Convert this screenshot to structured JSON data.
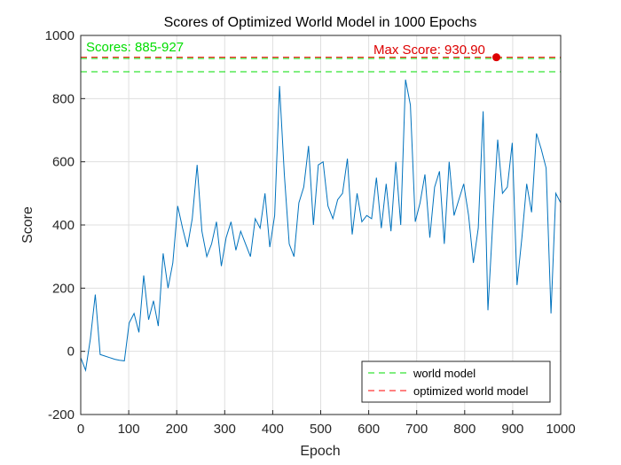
{
  "chart_data": {
    "type": "line",
    "title": "Scores of Optimized World Model in 1000 Epochs",
    "xlabel": "Epoch",
    "ylabel": "Score",
    "xlim": [
      0,
      1000
    ],
    "ylim": [
      -200,
      1000
    ],
    "xticks": [
      0,
      100,
      200,
      300,
      400,
      500,
      600,
      700,
      800,
      900,
      1000
    ],
    "yticks": [
      -200,
      0,
      200,
      400,
      600,
      800,
      1000
    ],
    "grid": true,
    "legend_position": "bottom-right",
    "series_color": "#0072BD",
    "series": [
      {
        "values": [
          -20,
          -60,
          40,
          180,
          -10,
          -15,
          -20,
          -25,
          -28,
          -30,
          90,
          120,
          60,
          240,
          100,
          160,
          80,
          310,
          200,
          280,
          460,
          390,
          330,
          420,
          590,
          380,
          300,
          340,
          410,
          270,
          360,
          410,
          320,
          380,
          340,
          300,
          420,
          390,
          500,
          330,
          430,
          840,
          560,
          340,
          300,
          470,
          520,
          650,
          400,
          590,
          600,
          460,
          420,
          480,
          500,
          610,
          370,
          500,
          410,
          430,
          420,
          550,
          390,
          530,
          380,
          600,
          400,
          860,
          780,
          410,
          470,
          560,
          360,
          520,
          570,
          340,
          600,
          430,
          480,
          530,
          430,
          280,
          390,
          760,
          130,
          410,
          670,
          500,
          520,
          660,
          210,
          360,
          530,
          440,
          690,
          640,
          580,
          120,
          500,
          470
        ]
      }
    ],
    "reference_lines": [
      {
        "name": "world model",
        "y": [
          885,
          927
        ],
        "color": "#00DD00",
        "style": "dashed"
      },
      {
        "name": "optimized world model",
        "y": 930.9,
        "color": "#FF0000",
        "style": "dashed"
      }
    ],
    "annotations": [
      {
        "text": "Scores: 885-927",
        "color": "#00DD00"
      },
      {
        "text": "Max Score: 930.90",
        "color": "#DD0000"
      }
    ],
    "max_point": {
      "epoch": 866,
      "value": 930.9,
      "color": "#DD0000"
    }
  }
}
